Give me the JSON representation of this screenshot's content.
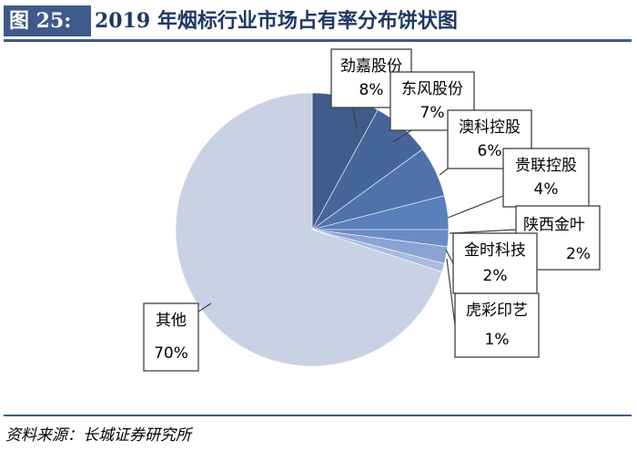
{
  "figure": {
    "label": "图 25:",
    "title": "2019 年烟标行业市场占有率分布饼状图",
    "source": "资料来源：长城证券研究所"
  },
  "colors": {
    "header_bg": "#3d5a8a",
    "title_text": "#1f3864"
  },
  "chart_data": {
    "type": "pie",
    "title": "2019 年烟标行业市场占有率分布饼状图",
    "unit": "%",
    "slices": [
      {
        "name": "劲嘉股份",
        "value": 8,
        "label": "8%",
        "color": "#3e5b89"
      },
      {
        "name": "东风股份",
        "value": 7,
        "label": "7%",
        "color": "#46669a"
      },
      {
        "name": "澳科控股",
        "value": 6,
        "label": "6%",
        "color": "#4f72ab"
      },
      {
        "name": "贵联控股",
        "value": 4,
        "label": "4%",
        "color": "#5a7fbb"
      },
      {
        "name": "陕西金叶",
        "value": 2,
        "label": "2%",
        "color": "#6a8cc6"
      },
      {
        "name": "金时科技",
        "value": 2,
        "label": "2%",
        "color": "#8aa3d2"
      },
      {
        "name": "虎彩印艺",
        "value": 1,
        "label": "1%",
        "color": "#a9bade"
      },
      {
        "name": "其他",
        "value": 70,
        "label": "70%",
        "color": "#c9d1e5"
      }
    ]
  }
}
